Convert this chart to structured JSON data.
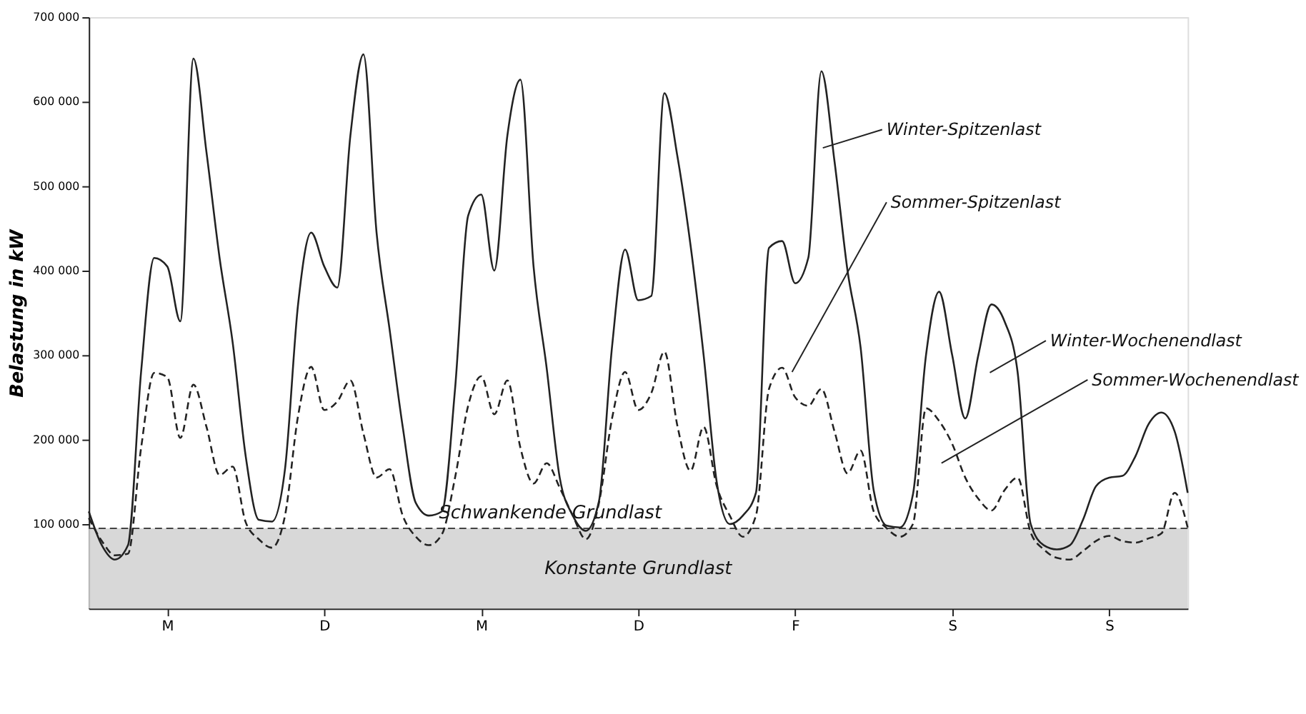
{
  "chart_data": {
    "type": "line",
    "ylabel": "Belastung in kW",
    "categories": [
      null,
      null,
      null,
      null,
      null,
      null,
      "M",
      null,
      null,
      null,
      null,
      null,
      null,
      null,
      null,
      null,
      null,
      null,
      "D",
      null,
      null,
      null,
      null,
      null,
      null,
      null,
      null,
      null,
      null,
      null,
      "M",
      null,
      null,
      null,
      null,
      null,
      null,
      null,
      null,
      null,
      null,
      null,
      "D",
      null,
      null,
      null,
      null,
      null,
      null,
      null,
      null,
      null,
      null,
      null,
      "F",
      null,
      null,
      null,
      null,
      null,
      null,
      null,
      null,
      null,
      null,
      null,
      "S",
      null,
      null,
      null,
      null,
      null,
      null,
      null,
      null,
      null,
      null,
      null,
      "S",
      null,
      null,
      null,
      null,
      null,
      null
    ],
    "ylim": [
      0,
      700000
    ],
    "yticks": [
      {
        "value": 100000,
        "label": "100 000"
      },
      {
        "value": 200000,
        "label": "200 000"
      },
      {
        "value": 300000,
        "label": "300 000"
      },
      {
        "value": 400000,
        "label": "400 000"
      },
      {
        "value": 500000,
        "label": "500 000"
      },
      {
        "value": 600000,
        "label": "600 000"
      },
      {
        "value": 700000,
        "label": "700 000"
      }
    ],
    "grid": false,
    "series": [
      {
        "color": "#222222",
        "line_style": "solid",
        "values": [
          115000,
          75000,
          58000,
          75000,
          280000,
          415000,
          405000,
          340000,
          651000,
          540000,
          415000,
          315000,
          180000,
          105000,
          103000,
          165000,
          360000,
          445000,
          405000,
          380000,
          560000,
          656000,
          445000,
          330000,
          215000,
          125000,
          110000,
          115000,
          260000,
          465000,
          490000,
          400000,
          560000,
          626000,
          405000,
          285000,
          155000,
          110000,
          92000,
          127000,
          310000,
          425000,
          365000,
          370000,
          610000,
          535000,
          430000,
          300000,
          150000,
          100000,
          110000,
          137000,
          427000,
          435000,
          385000,
          415000,
          636000,
          530000,
          400000,
          309000,
          140000,
          98000,
          96000,
          135000,
          300000,
          375000,
          300000,
          225000,
          300000,
          360000,
          340000,
          280000,
          100000,
          75000,
          70000,
          75000,
          105000,
          145000,
          155000,
          157000,
          180000,
          218000,
          232000,
          210000,
          137000
        ]
      },
      {
        "color": "#222222",
        "line_style": "dashed",
        "values": [
          107000,
          80000,
          63000,
          65000,
          190000,
          279000,
          274000,
          202000,
          265000,
          215000,
          158000,
          168000,
          102000,
          82000,
          72000,
          110000,
          228000,
          286000,
          235000,
          245000,
          270000,
          207000,
          155000,
          165000,
          110000,
          85000,
          75000,
          88000,
          155000,
          240000,
          275000,
          230000,
          270000,
          190000,
          148000,
          172000,
          143000,
          110000,
          82000,
          125000,
          225000,
          280000,
          235000,
          255000,
          304000,
          216000,
          163000,
          215000,
          145000,
          110000,
          85000,
          110000,
          260000,
          285000,
          250000,
          240000,
          260000,
          210000,
          160000,
          187000,
          115000,
          95000,
          85000,
          100000,
          237000,
          222000,
          195000,
          155000,
          130000,
          116000,
          140000,
          155000,
          90000,
          70000,
          60000,
          58000,
          68000,
          80000,
          86000,
          80000,
          78000,
          83000,
          89000,
          137000,
          96000
        ]
      }
    ],
    "bands": [
      {
        "axis": "y",
        "from": 0,
        "to": 95000,
        "label": "Konstante Grundlast",
        "color": "#d4d4d4"
      }
    ],
    "ref_lines": [
      {
        "axis": "y",
        "value": 95000,
        "label": "Schwankende Grundlast",
        "line_style": "dashed",
        "color": "#444444"
      }
    ],
    "annotations": [
      "Winter-Spitzenlast",
      "Sommer-Spitzenlast",
      "Winter-Wochenendlast",
      "Sommer-Wochenendlast"
    ]
  }
}
